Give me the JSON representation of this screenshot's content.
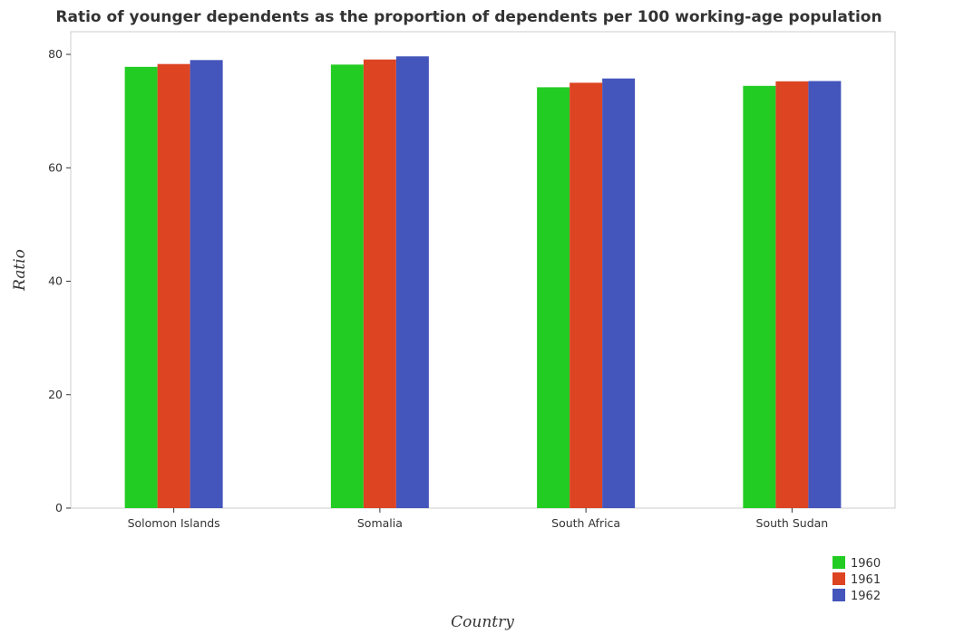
{
  "chart_data": {
    "type": "bar",
    "title": "Ratio of younger dependents as the proportion of dependents per 100 working-age population",
    "xlabel": "Country",
    "ylabel": "Ratio",
    "categories": [
      "Solomon Islands",
      "Somalia",
      "South Africa",
      "South Sudan"
    ],
    "series": [
      {
        "name": "1960",
        "color": "#22cc22",
        "values": [
          77.8,
          78.2,
          74.2,
          74.45
        ]
      },
      {
        "name": "1961",
        "color": "#dd4422",
        "values": [
          78.3,
          79.1,
          75.0,
          75.25
        ]
      },
      {
        "name": "1962",
        "color": "#4455bb",
        "values": [
          79.0,
          79.65,
          75.75,
          75.3
        ]
      }
    ],
    "ylim": [
      0,
      84
    ],
    "yticks": [
      0,
      20,
      40,
      60,
      80
    ],
    "grid": false,
    "legend_position": "bottom-right"
  }
}
